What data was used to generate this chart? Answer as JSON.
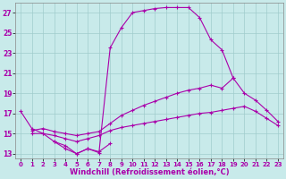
{
  "xlabel": "Windchill (Refroidissement éolien,°C)",
  "bg_color": "#c8eaea",
  "line_color": "#aa00aa",
  "grid_color": "#a0cccc",
  "ylim": [
    12.5,
    28.0
  ],
  "xlim": [
    -0.5,
    23.5
  ],
  "yticks": [
    13,
    15,
    17,
    19,
    21,
    23,
    25,
    27
  ],
  "xticks": [
    0,
    1,
    2,
    3,
    4,
    5,
    6,
    7,
    8,
    9,
    10,
    11,
    12,
    13,
    14,
    15,
    16,
    17,
    18,
    19,
    20,
    21,
    22,
    23
  ],
  "curve1_x": [
    0,
    1,
    2,
    3,
    4,
    5,
    6,
    7,
    8,
    9,
    10,
    11,
    12,
    13,
    14,
    15,
    16,
    17,
    18,
    19
  ],
  "curve1_y": [
    17.2,
    15.5,
    15.0,
    14.2,
    13.8,
    13.0,
    13.5,
    13.1,
    23.5,
    25.5,
    27.0,
    27.2,
    27.4,
    27.5,
    27.5,
    27.5,
    26.5,
    24.3,
    23.3,
    20.5
  ],
  "curve2_x": [
    1,
    2,
    3,
    4,
    5,
    6,
    7,
    8,
    9,
    10,
    11,
    12,
    13,
    14,
    15,
    16,
    17,
    18,
    19,
    20,
    21,
    22,
    23
  ],
  "curve2_y": [
    15.3,
    15.5,
    15.2,
    15.0,
    14.8,
    15.0,
    15.2,
    16.0,
    16.8,
    17.3,
    17.8,
    18.2,
    18.6,
    19.0,
    19.3,
    19.5,
    19.8,
    19.5,
    20.5,
    19.0,
    18.3,
    17.3,
    16.2
  ],
  "curve3_x": [
    1,
    2,
    3,
    4,
    5,
    6,
    7,
    8,
    9,
    10,
    11,
    12,
    13,
    14,
    15,
    16,
    17,
    18,
    19,
    20,
    21,
    22,
    23
  ],
  "curve3_y": [
    15.0,
    15.0,
    14.8,
    14.5,
    14.2,
    14.5,
    14.8,
    15.3,
    15.6,
    15.8,
    16.0,
    16.2,
    16.4,
    16.6,
    16.8,
    17.0,
    17.1,
    17.3,
    17.5,
    17.7,
    17.2,
    16.5,
    15.8
  ],
  "curve4_x": [
    3,
    4,
    5,
    6,
    7,
    8
  ],
  "curve4_y": [
    14.2,
    13.5,
    13.0,
    13.5,
    13.2,
    14.0
  ],
  "xtick_fontsize": 5.0,
  "ytick_fontsize": 5.5,
  "xlabel_fontsize": 6.0
}
